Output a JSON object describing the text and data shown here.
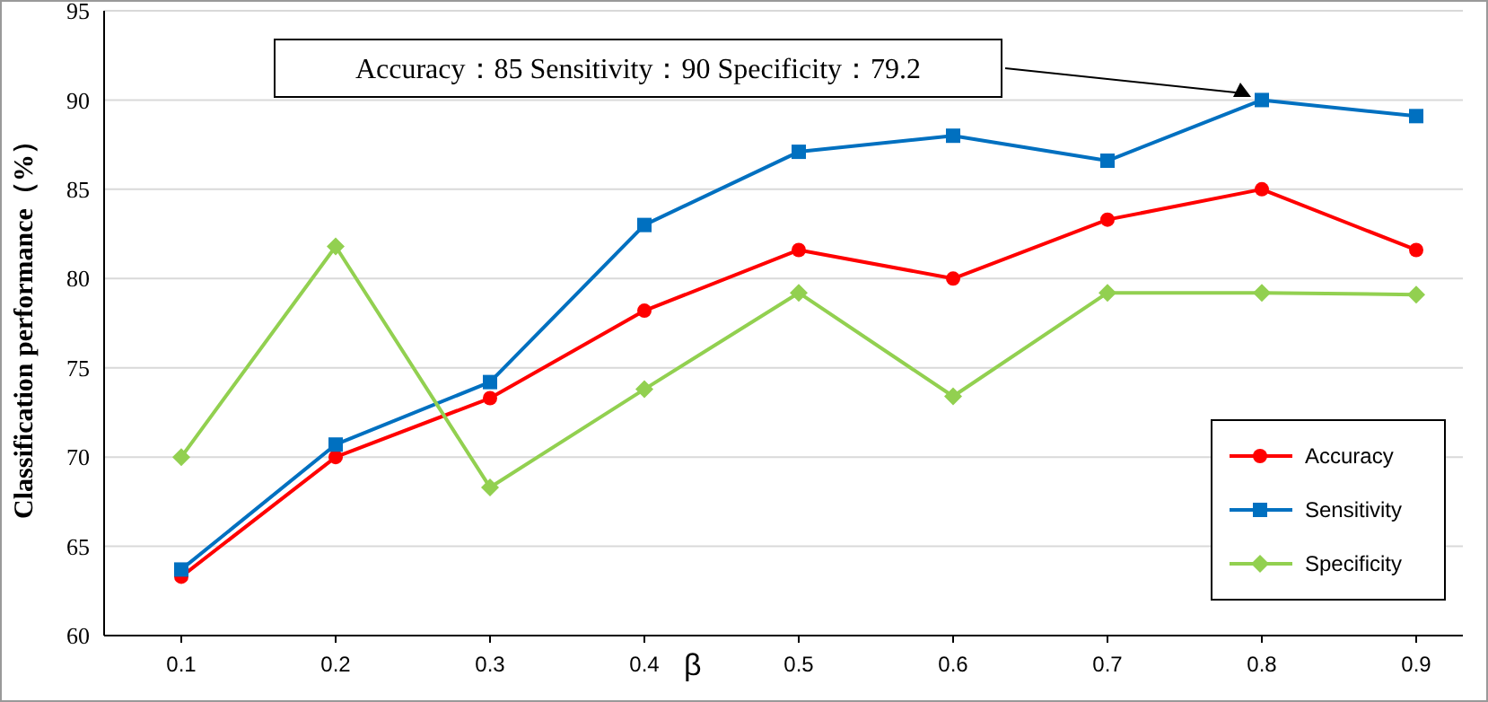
{
  "chart_data": {
    "type": "line",
    "ylabel": "Classification performance（%）",
    "xlabel": "β",
    "categories": [
      "0.1",
      "0.2",
      "0.3",
      "0.4",
      "0.5",
      "0.6",
      "0.7",
      "0.8",
      "0.9"
    ],
    "series": [
      {
        "name": "Accuracy",
        "color": "#ff0000",
        "marker": "circle",
        "values": [
          63.3,
          70,
          73.3,
          78.2,
          81.6,
          80,
          83.3,
          85,
          81.6
        ]
      },
      {
        "name": "Sensitivity",
        "color": "#0070c0",
        "marker": "square",
        "values": [
          63.7,
          70.7,
          74.2,
          83,
          87.1,
          88,
          86.6,
          90,
          89.1
        ]
      },
      {
        "name": "Specificity",
        "color": "#92d050",
        "marker": "diamond",
        "values": [
          70,
          81.8,
          68.3,
          73.8,
          79.2,
          73.4,
          79.2,
          79.2,
          79.1
        ]
      }
    ],
    "ylim": [
      60,
      95
    ],
    "yticks": [
      60,
      65,
      70,
      75,
      80,
      85,
      90,
      95
    ],
    "grid": "y",
    "legend": "bottom right",
    "annotations": [
      "Accuracy：85  Sensitivity：90  Specificity：79.2"
    ]
  }
}
